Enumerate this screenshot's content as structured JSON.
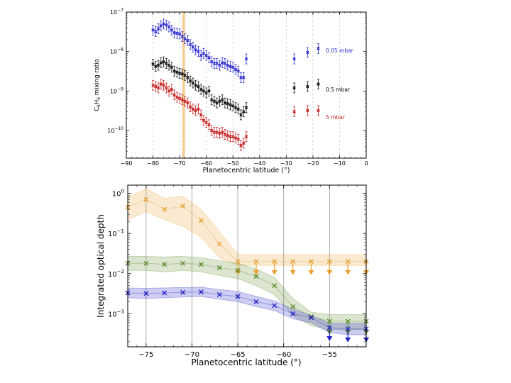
{
  "chart_data": [
    {
      "type": "scatter",
      "title": "",
      "xlabel": "Planetocentric latitude (°)",
      "ylabel": "C6H6 mixing ratio",
      "ylabel_parts": {
        "base": "C",
        "sub1": "6",
        "mid": "H",
        "sub2": "6",
        "rest": " mixing ratio"
      },
      "xlim": [
        -90,
        0
      ],
      "ylim": [
        2e-11,
        1e-07
      ],
      "yscale": "log",
      "grid": "vertical-dashed",
      "xticks": [
        "−90",
        "−80",
        "−70",
        "−60",
        "−50",
        "−40",
        "−30",
        "−20",
        "−10",
        "0"
      ],
      "yticks": [
        {
          "value": 1e-10,
          "base": "10",
          "exp": "−10"
        },
        {
          "value": 1e-09,
          "base": "10",
          "exp": "−9"
        },
        {
          "value": 1e-08,
          "base": "10",
          "exp": "−8"
        },
        {
          "value": 1e-07,
          "base": "10",
          "exp": "−7"
        }
      ],
      "highlight_band_x": [
        -69,
        -68
      ],
      "series": [
        {
          "name": "0.05 mbar",
          "color": "#2e2ecf",
          "x": [
            -80,
            -79,
            -78,
            -77,
            -76,
            -75,
            -74,
            -73,
            -72,
            -71,
            -70,
            -69,
            -68,
            -67,
            -66,
            -65,
            -64,
            -63,
            -62,
            -61,
            -60,
            -59,
            -58,
            -57,
            -56,
            -55,
            -54,
            -53,
            -52,
            -51,
            -50,
            -49,
            -48,
            -47,
            -46,
            -45,
            -27,
            -22,
            -18
          ],
          "y": [
            3.5e-08,
            3.2e-08,
            3.8e-08,
            4.5e-08,
            5e-08,
            4.7e-08,
            4.2e-08,
            3.5e-08,
            3e-08,
            2.9e-08,
            2.8e-08,
            2.4e-08,
            2.1e-08,
            1.9e-08,
            1.5e-08,
            1.3e-08,
            1.1e-08,
            1e-08,
            8e-09,
            9e-09,
            8e-09,
            7e-09,
            5.5e-09,
            5e-09,
            5e-09,
            4.5e-09,
            5.2e-09,
            5e-09,
            4.5e-09,
            4.2e-09,
            4e-09,
            3.5e-09,
            3.2e-09,
            2.2e-09,
            2.2e-09,
            6.5e-09,
            6.5e-09,
            9.5e-09,
            1.2e-08
          ]
        },
        {
          "name": "0.5 mbar",
          "color": "#111111",
          "x": [
            -80,
            -79,
            -78,
            -77,
            -76,
            -75,
            -74,
            -73,
            -72,
            -71,
            -70,
            -69,
            -68,
            -67,
            -66,
            -65,
            -64,
            -63,
            -62,
            -61,
            -60,
            -59,
            -58,
            -57,
            -56,
            -55,
            -54,
            -53,
            -52,
            -51,
            -50,
            -49,
            -48,
            -47,
            -46,
            -45,
            -27,
            -22,
            -18
          ],
          "y": [
            4.8e-09,
            4.2e-09,
            4.5e-09,
            5.2e-09,
            5.5e-09,
            5e-09,
            4.5e-09,
            4e-09,
            3.2e-09,
            3e-09,
            2.8e-09,
            2.7e-09,
            2.5e-09,
            2.2e-09,
            1.8e-09,
            1.6e-09,
            1.4e-09,
            1.3e-09,
            1.1e-09,
            1e-09,
            9e-10,
            1e-09,
            6e-10,
            5.5e-10,
            5e-10,
            5.5e-10,
            6e-10,
            5e-10,
            4.8e-10,
            4.5e-10,
            4.2e-10,
            3.8e-10,
            3.5e-10,
            2.5e-10,
            3e-10,
            3.8e-10,
            1.2e-09,
            1.3e-09,
            1.5e-09
          ]
        },
        {
          "name": "5 mbar",
          "color": "#c62020",
          "x": [
            -80,
            -79,
            -78,
            -77,
            -76,
            -75,
            -74,
            -73,
            -72,
            -71,
            -70,
            -69,
            -68,
            -67,
            -66,
            -65,
            -64,
            -63,
            -62,
            -61,
            -60,
            -59,
            -58,
            -57,
            -56,
            -55,
            -54,
            -53,
            -52,
            -51,
            -50,
            -49,
            -48,
            -47,
            -46,
            -45,
            -27,
            -22,
            -18
          ],
          "y": [
            1.4e-09,
            1.3e-09,
            1.2e-09,
            1.5e-09,
            1.4e-09,
            1.2e-09,
            1e-09,
            1.1e-09,
            8e-10,
            7e-10,
            6.5e-10,
            6e-10,
            5.5e-10,
            5e-10,
            4e-10,
            3.5e-10,
            3.2e-10,
            3.5e-10,
            2.5e-10,
            1.8e-10,
            1.6e-10,
            1.4e-10,
            1e-10,
            9e-11,
            9e-11,
            8.5e-11,
            9e-11,
            8e-11,
            7.5e-11,
            7e-11,
            7e-11,
            6.5e-11,
            6e-11,
            4.2e-11,
            4.8e-11,
            7e-11,
            3e-10,
            3.2e-10,
            3.2e-10
          ]
        }
      ]
    },
    {
      "type": "line",
      "title": "",
      "xlabel": "Planetocentric latitude (°)",
      "ylabel": "Integrated optical depth",
      "xlim": [
        -77,
        -51
      ],
      "ylim": [
        0.00015,
        1.6
      ],
      "yscale": "log",
      "grid": "vertical",
      "xticks": [
        {
          "value": -75,
          "label": "−75"
        },
        {
          "value": -70,
          "label": "−70"
        },
        {
          "value": -65,
          "label": "−65"
        },
        {
          "value": -60,
          "label": "−60"
        },
        {
          "value": -55,
          "label": "−55"
        }
      ],
      "yticks": [
        {
          "value": 0.001,
          "base": "10",
          "exp": "−3"
        },
        {
          "value": 0.01,
          "base": "10",
          "exp": "−2"
        },
        {
          "value": 0.1,
          "base": "10",
          "exp": "−1"
        },
        {
          "value": 1,
          "base": "10",
          "exp": "0"
        }
      ],
      "series": [
        {
          "color": "#e8a030",
          "x": [
            -77,
            -75,
            -73,
            -71,
            -69,
            -67,
            -65,
            -63,
            -61,
            -59,
            -57,
            -55,
            -53,
            -51
          ],
          "y": [
            0.45,
            0.7,
            0.4,
            0.48,
            0.21,
            0.055,
            0.02,
            0.02,
            0.02,
            0.02,
            0.02,
            0.02,
            0.02,
            0.02
          ],
          "band_low": [
            0.22,
            0.35,
            0.22,
            0.15,
            0.08,
            0.025,
            0.016,
            0.016,
            0.016,
            0.016,
            0.016,
            0.016,
            0.016,
            0.016
          ],
          "band_high": [
            0.8,
            1.3,
            0.75,
            0.85,
            0.4,
            0.11,
            0.03,
            0.03,
            0.03,
            0.03,
            0.03,
            0.03,
            0.03,
            0.03
          ],
          "upper_limit_x": [
            -65,
            -63,
            -61,
            -59,
            -57,
            -55,
            -53,
            -51
          ]
        },
        {
          "color": "#5a8a28",
          "x": [
            -77,
            -75,
            -73,
            -71,
            -69,
            -67,
            -65,
            -63,
            -61,
            -59,
            -57,
            -55,
            -53,
            -51
          ],
          "y": [
            0.018,
            0.018,
            0.017,
            0.018,
            0.017,
            0.014,
            0.012,
            0.0085,
            0.005,
            0.0015,
            0.00085,
            0.00065,
            0.00065,
            0.00065
          ],
          "band_low": [
            0.012,
            0.012,
            0.011,
            0.012,
            0.011,
            0.009,
            0.0075,
            0.005,
            0.003,
            0.0009,
            0.0005,
            0.0004,
            0.0004,
            0.0004
          ],
          "band_high": [
            0.027,
            0.027,
            0.026,
            0.027,
            0.025,
            0.021,
            0.018,
            0.013,
            0.008,
            0.0024,
            0.0011,
            0.00095,
            0.00095,
            0.00095
          ],
          "upper_limit_x": [
            -55,
            -53,
            -51
          ]
        },
        {
          "color": "#2020c8",
          "x": [
            -77,
            -75,
            -73,
            -71,
            -69,
            -67,
            -65,
            -63,
            -61,
            -59,
            -57,
            -55,
            -53,
            -51
          ],
          "y": [
            0.0033,
            0.0032,
            0.0033,
            0.0034,
            0.0035,
            0.003,
            0.0027,
            0.002,
            0.0016,
            0.001,
            0.0008,
            0.00045,
            0.00042,
            0.00042
          ],
          "band_low": [
            0.0025,
            0.0024,
            0.0025,
            0.0026,
            0.0027,
            0.0023,
            0.002,
            0.0015,
            0.0012,
            0.00075,
            0.0006,
            0.00034,
            0.0003,
            0.0003
          ],
          "band_high": [
            0.0044,
            0.0043,
            0.0044,
            0.0045,
            0.0046,
            0.004,
            0.0036,
            0.0027,
            0.0021,
            0.0013,
            0.0009,
            0.00058,
            0.00058,
            0.00058
          ],
          "upper_limit_x": [
            -55,
            -53,
            -51
          ]
        }
      ]
    }
  ]
}
